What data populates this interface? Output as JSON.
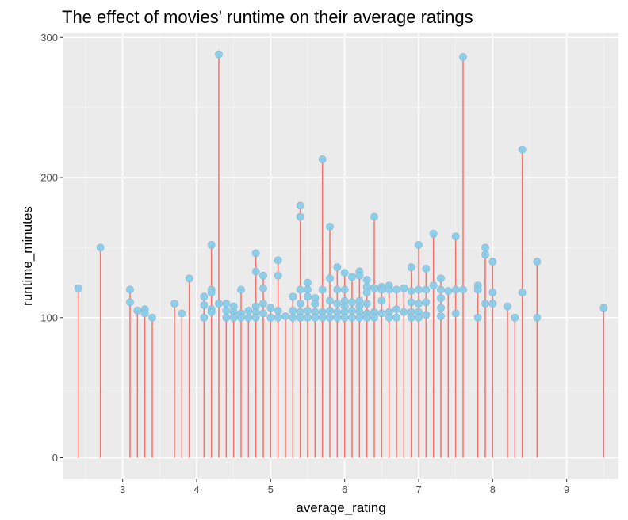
{
  "chart_data": {
    "type": "scatter",
    "style": "lollipop",
    "title": "The effect of movies' runtime on their average ratings",
    "xlabel": "average_rating",
    "ylabel": "runtime_minutes",
    "xlim": [
      2.2,
      9.7
    ],
    "ylim": [
      -15,
      303
    ],
    "x_ticks": [
      3,
      4,
      5,
      6,
      7,
      8,
      9
    ],
    "y_ticks": [
      0,
      100,
      200,
      300
    ],
    "grid": true,
    "legend": "none",
    "colors": {
      "panel": "#ebebeb",
      "grid_major": "#ffffff",
      "grid_minor": "#f5f5f5",
      "stem": "#f8766d",
      "point": "#87ceeb",
      "point_outline": "#8fb0c8",
      "tick_text": "#4d4d4d",
      "tick_mark": "#333333"
    },
    "points": [
      {
        "x": 2.4,
        "y": 121
      },
      {
        "x": 2.7,
        "y": 150
      },
      {
        "x": 3.1,
        "y": 120
      },
      {
        "x": 3.1,
        "y": 111
      },
      {
        "x": 3.2,
        "y": 105
      },
      {
        "x": 3.3,
        "y": 106
      },
      {
        "x": 3.3,
        "y": 103
      },
      {
        "x": 3.4,
        "y": 100
      },
      {
        "x": 3.7,
        "y": 110
      },
      {
        "x": 3.8,
        "y": 103
      },
      {
        "x": 3.9,
        "y": 128
      },
      {
        "x": 4.1,
        "y": 115
      },
      {
        "x": 4.1,
        "y": 109
      },
      {
        "x": 4.1,
        "y": 100
      },
      {
        "x": 4.2,
        "y": 152
      },
      {
        "x": 4.2,
        "y": 120
      },
      {
        "x": 4.2,
        "y": 118
      },
      {
        "x": 4.2,
        "y": 106
      },
      {
        "x": 4.2,
        "y": 104
      },
      {
        "x": 4.3,
        "y": 288
      },
      {
        "x": 4.3,
        "y": 110
      },
      {
        "x": 4.4,
        "y": 110
      },
      {
        "x": 4.4,
        "y": 105
      },
      {
        "x": 4.4,
        "y": 100
      },
      {
        "x": 4.5,
        "y": 108
      },
      {
        "x": 4.5,
        "y": 104
      },
      {
        "x": 4.5,
        "y": 100
      },
      {
        "x": 4.6,
        "y": 120
      },
      {
        "x": 4.6,
        "y": 103
      },
      {
        "x": 4.6,
        "y": 100
      },
      {
        "x": 4.7,
        "y": 105
      },
      {
        "x": 4.7,
        "y": 100
      },
      {
        "x": 4.8,
        "y": 146
      },
      {
        "x": 4.8,
        "y": 133
      },
      {
        "x": 4.8,
        "y": 108
      },
      {
        "x": 4.8,
        "y": 104
      },
      {
        "x": 4.8,
        "y": 100
      },
      {
        "x": 4.9,
        "y": 130
      },
      {
        "x": 4.9,
        "y": 121
      },
      {
        "x": 4.9,
        "y": 110
      },
      {
        "x": 4.9,
        "y": 103
      },
      {
        "x": 5.0,
        "y": 107
      },
      {
        "x": 5.0,
        "y": 100
      },
      {
        "x": 5.1,
        "y": 141
      },
      {
        "x": 5.1,
        "y": 130
      },
      {
        "x": 5.1,
        "y": 105
      },
      {
        "x": 5.1,
        "y": 100
      },
      {
        "x": 5.2,
        "y": 101
      },
      {
        "x": 5.3,
        "y": 115
      },
      {
        "x": 5.3,
        "y": 105
      },
      {
        "x": 5.3,
        "y": 100
      },
      {
        "x": 5.4,
        "y": 180
      },
      {
        "x": 5.4,
        "y": 172
      },
      {
        "x": 5.4,
        "y": 120
      },
      {
        "x": 5.4,
        "y": 110
      },
      {
        "x": 5.4,
        "y": 104
      },
      {
        "x": 5.4,
        "y": 100
      },
      {
        "x": 5.5,
        "y": 125
      },
      {
        "x": 5.5,
        "y": 120
      },
      {
        "x": 5.5,
        "y": 115
      },
      {
        "x": 5.5,
        "y": 105
      },
      {
        "x": 5.5,
        "y": 100
      },
      {
        "x": 5.6,
        "y": 114
      },
      {
        "x": 5.6,
        "y": 110
      },
      {
        "x": 5.6,
        "y": 104
      },
      {
        "x": 5.6,
        "y": 100
      },
      {
        "x": 5.7,
        "y": 213
      },
      {
        "x": 5.7,
        "y": 120
      },
      {
        "x": 5.7,
        "y": 104
      },
      {
        "x": 5.7,
        "y": 100
      },
      {
        "x": 5.8,
        "y": 165
      },
      {
        "x": 5.8,
        "y": 128
      },
      {
        "x": 5.8,
        "y": 112
      },
      {
        "x": 5.8,
        "y": 105
      },
      {
        "x": 5.8,
        "y": 100
      },
      {
        "x": 5.9,
        "y": 136
      },
      {
        "x": 5.9,
        "y": 120
      },
      {
        "x": 5.9,
        "y": 110
      },
      {
        "x": 5.9,
        "y": 104
      },
      {
        "x": 5.9,
        "y": 100
      },
      {
        "x": 6.0,
        "y": 132
      },
      {
        "x": 6.0,
        "y": 120
      },
      {
        "x": 6.0,
        "y": 112
      },
      {
        "x": 6.0,
        "y": 108
      },
      {
        "x": 6.0,
        "y": 104
      },
      {
        "x": 6.0,
        "y": 100
      },
      {
        "x": 6.1,
        "y": 129
      },
      {
        "x": 6.1,
        "y": 111
      },
      {
        "x": 6.1,
        "y": 105
      },
      {
        "x": 6.1,
        "y": 100
      },
      {
        "x": 6.2,
        "y": 133
      },
      {
        "x": 6.2,
        "y": 130
      },
      {
        "x": 6.2,
        "y": 112
      },
      {
        "x": 6.2,
        "y": 108
      },
      {
        "x": 6.2,
        "y": 104
      },
      {
        "x": 6.2,
        "y": 100
      },
      {
        "x": 6.3,
        "y": 127
      },
      {
        "x": 6.3,
        "y": 122
      },
      {
        "x": 6.3,
        "y": 118
      },
      {
        "x": 6.3,
        "y": 110
      },
      {
        "x": 6.3,
        "y": 103
      },
      {
        "x": 6.3,
        "y": 100
      },
      {
        "x": 6.4,
        "y": 172
      },
      {
        "x": 6.4,
        "y": 121
      },
      {
        "x": 6.4,
        "y": 104
      },
      {
        "x": 6.4,
        "y": 100
      },
      {
        "x": 6.5,
        "y": 122
      },
      {
        "x": 6.5,
        "y": 120
      },
      {
        "x": 6.5,
        "y": 112
      },
      {
        "x": 6.5,
        "y": 103
      },
      {
        "x": 6.6,
        "y": 123
      },
      {
        "x": 6.6,
        "y": 120
      },
      {
        "x": 6.6,
        "y": 104
      },
      {
        "x": 6.6,
        "y": 100
      },
      {
        "x": 6.7,
        "y": 120
      },
      {
        "x": 6.7,
        "y": 106
      },
      {
        "x": 6.7,
        "y": 100
      },
      {
        "x": 6.8,
        "y": 121
      },
      {
        "x": 6.8,
        "y": 104
      },
      {
        "x": 6.9,
        "y": 136
      },
      {
        "x": 6.9,
        "y": 119
      },
      {
        "x": 6.9,
        "y": 111
      },
      {
        "x": 6.9,
        "y": 104
      },
      {
        "x": 6.9,
        "y": 100
      },
      {
        "x": 7.0,
        "y": 152
      },
      {
        "x": 7.0,
        "y": 120
      },
      {
        "x": 7.0,
        "y": 110
      },
      {
        "x": 7.0,
        "y": 104
      },
      {
        "x": 7.0,
        "y": 100
      },
      {
        "x": 7.1,
        "y": 135
      },
      {
        "x": 7.1,
        "y": 120
      },
      {
        "x": 7.1,
        "y": 111
      },
      {
        "x": 7.1,
        "y": 102
      },
      {
        "x": 7.2,
        "y": 160
      },
      {
        "x": 7.2,
        "y": 123
      },
      {
        "x": 7.3,
        "y": 128
      },
      {
        "x": 7.3,
        "y": 120
      },
      {
        "x": 7.3,
        "y": 114
      },
      {
        "x": 7.3,
        "y": 107
      },
      {
        "x": 7.3,
        "y": 101
      },
      {
        "x": 7.4,
        "y": 119
      },
      {
        "x": 7.5,
        "y": 158
      },
      {
        "x": 7.5,
        "y": 120
      },
      {
        "x": 7.5,
        "y": 103
      },
      {
        "x": 7.6,
        "y": 286
      },
      {
        "x": 7.6,
        "y": 120
      },
      {
        "x": 7.8,
        "y": 123
      },
      {
        "x": 7.8,
        "y": 120
      },
      {
        "x": 7.8,
        "y": 100
      },
      {
        "x": 7.9,
        "y": 150
      },
      {
        "x": 7.9,
        "y": 145
      },
      {
        "x": 7.9,
        "y": 110
      },
      {
        "x": 8.0,
        "y": 140
      },
      {
        "x": 8.0,
        "y": 118
      },
      {
        "x": 8.0,
        "y": 110
      },
      {
        "x": 8.2,
        "y": 108
      },
      {
        "x": 8.3,
        "y": 100
      },
      {
        "x": 8.4,
        "y": 220
      },
      {
        "x": 8.4,
        "y": 118
      },
      {
        "x": 8.6,
        "y": 140
      },
      {
        "x": 8.6,
        "y": 100
      },
      {
        "x": 9.5,
        "y": 107
      }
    ]
  }
}
